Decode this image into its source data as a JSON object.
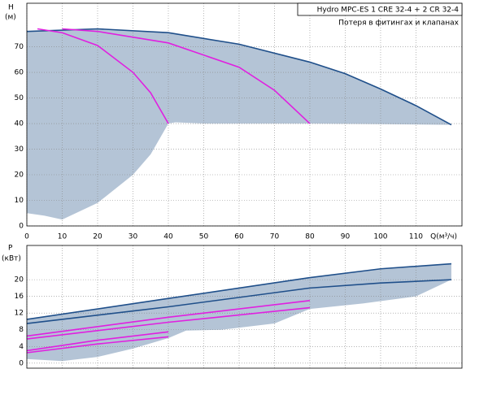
{
  "chart_data": [
    {
      "type": "line",
      "y_label": "H",
      "y_unit": "(м)",
      "x_label": "Q(м³/ч)",
      "legend_title": "Hydro MPC-ES 1 CRE 32-4  +  2 CR 32-4",
      "note": "Потеря в фитингах и клапанах",
      "xlim": [
        0,
        123
      ],
      "ylim": [
        0,
        87
      ],
      "xticks": [
        0,
        10,
        20,
        30,
        40,
        50,
        60,
        70,
        80,
        90,
        100,
        110
      ],
      "yticks": [
        0,
        10,
        20,
        30,
        40,
        50,
        60,
        70
      ],
      "grid": true,
      "areas": [
        {
          "color": "#b4c4d6",
          "x": [
            0,
            20,
            40,
            60,
            80,
            90,
            100,
            110,
            120,
            80,
            50,
            42,
            40,
            35,
            30,
            20,
            10,
            5,
            0
          ],
          "y": [
            76,
            77,
            75.5,
            71,
            64,
            59.5,
            53.5,
            47,
            39.5,
            40,
            40,
            40.5,
            40,
            28,
            20,
            9,
            2.5,
            4,
            5
          ]
        }
      ],
      "series": [
        {
          "color": "#1f4f8a",
          "x": [
            0,
            20,
            40,
            60,
            80,
            90,
            100,
            110,
            120
          ],
          "values": [
            76,
            77,
            75.5,
            71,
            64,
            59.5,
            53.5,
            47,
            39.5
          ]
        },
        {
          "color": "#e020e0",
          "x": [
            3,
            10,
            20,
            30,
            35,
            40
          ],
          "values": [
            77,
            75.5,
            70.5,
            60,
            52,
            40
          ]
        },
        {
          "color": "#e020e0",
          "x": [
            10,
            20,
            40,
            60,
            70,
            80
          ],
          "values": [
            77,
            76,
            71.5,
            62,
            53,
            40
          ]
        }
      ]
    },
    {
      "type": "line",
      "y_label": "P",
      "y_unit": "(кВт)",
      "xlim": [
        0,
        123
      ],
      "ylim": [
        -1.2,
        28.2
      ],
      "yticks": [
        0,
        4,
        8,
        12,
        16,
        20
      ],
      "grid": true,
      "areas": [
        {
          "color": "#b4c4d6",
          "x": [
            0,
            40,
            80,
            100,
            120,
            120,
            110,
            95,
            80,
            70,
            55,
            45,
            40,
            30,
            20,
            10,
            0
          ],
          "y": [
            10.5,
            15.5,
            20.5,
            22.6,
            23.8,
            20,
            16,
            14.3,
            13,
            9.5,
            8,
            7.8,
            6,
            3.5,
            1.5,
            0.5,
            1
          ]
        }
      ],
      "series": [
        {
          "color": "#1f4f8a",
          "x": [
            0,
            40,
            80,
            100,
            120
          ],
          "values": [
            10.5,
            15.5,
            20.5,
            22.6,
            23.8
          ]
        },
        {
          "color": "#1f4f8a",
          "x": [
            0,
            40,
            80,
            100,
            120
          ],
          "values": [
            9.5,
            13.5,
            18,
            19.2,
            20
          ]
        },
        {
          "color": "#e020e0",
          "x": [
            0,
            40,
            80
          ],
          "values": [
            6.5,
            11,
            15
          ]
        },
        {
          "color": "#e020e0",
          "x": [
            0,
            40,
            80
          ],
          "values": [
            5.8,
            9.8,
            13.3
          ]
        },
        {
          "color": "#e020e0",
          "x": [
            0,
            20,
            40
          ],
          "values": [
            3,
            5.5,
            7.5
          ]
        },
        {
          "color": "#e020e0",
          "x": [
            0,
            20,
            40
          ],
          "values": [
            2.5,
            4.6,
            6.3
          ]
        }
      ]
    }
  ]
}
